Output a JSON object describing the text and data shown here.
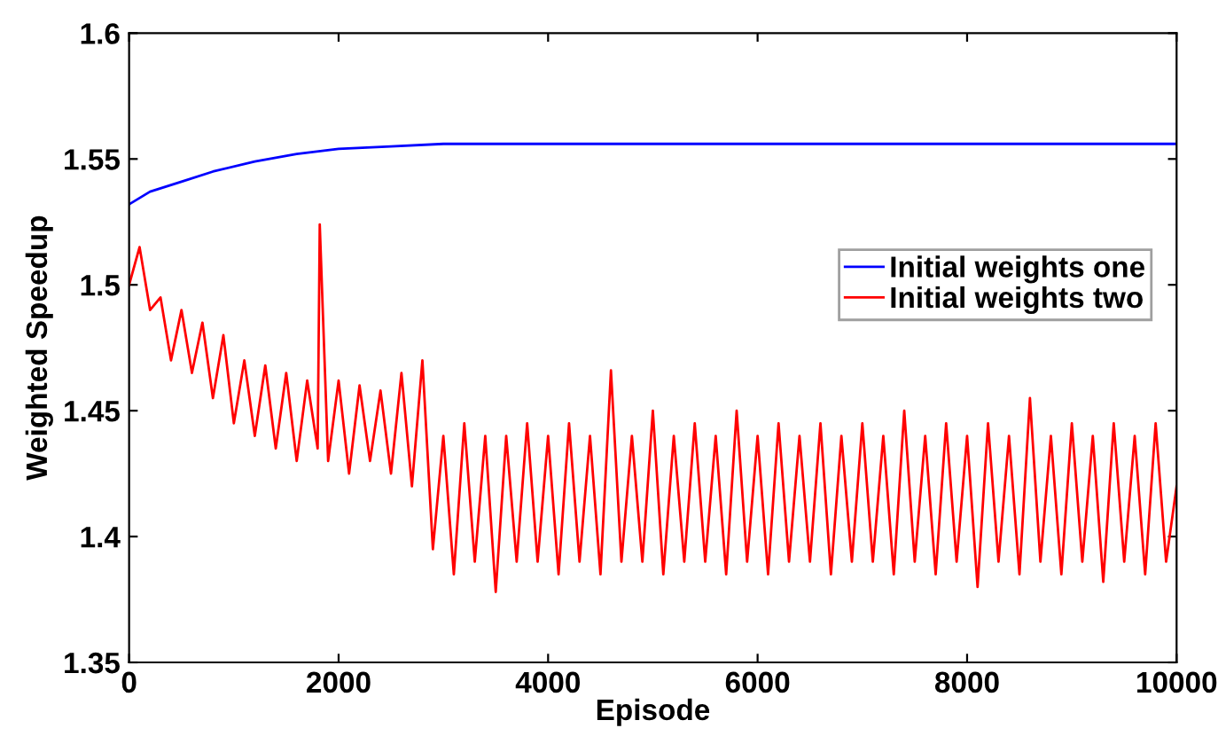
{
  "chart_data": {
    "type": "line",
    "xlabel": "Episode",
    "ylabel": "Weighted Speedup",
    "xlim": [
      0,
      10000
    ],
    "ylim": [
      1.35,
      1.6
    ],
    "xticks": [
      0,
      2000,
      4000,
      6000,
      8000,
      10000
    ],
    "yticks": [
      1.35,
      1.4,
      1.45,
      1.5,
      1.55,
      1.6
    ],
    "grid": false,
    "legend": "right",
    "marker": "none",
    "line_style": "solid",
    "series": [
      {
        "name": "Initial weights one",
        "color": "#0000ff",
        "x": [
          0,
          200,
          500,
          800,
          1200,
          1600,
          2000,
          2500,
          3000,
          4000,
          6000,
          8000,
          10000
        ],
        "values": [
          1.532,
          1.537,
          1.541,
          1.545,
          1.549,
          1.552,
          1.554,
          1.555,
          1.556,
          1.556,
          1.556,
          1.556,
          1.556
        ]
      },
      {
        "name": "Initial weights two",
        "color": "#ff0000",
        "x": [
          0,
          100,
          200,
          300,
          400,
          500,
          600,
          700,
          800,
          900,
          1000,
          1100,
          1200,
          1300,
          1400,
          1500,
          1600,
          1700,
          1800,
          1820,
          1900,
          2000,
          2100,
          2200,
          2300,
          2400,
          2500,
          2600,
          2700,
          2800,
          2900,
          3000,
          3100,
          3200,
          3300,
          3400,
          3500,
          3600,
          3700,
          3800,
          3900,
          4000,
          4100,
          4200,
          4300,
          4400,
          4500,
          4600,
          4700,
          4800,
          4900,
          5000,
          5100,
          5200,
          5300,
          5400,
          5500,
          5600,
          5700,
          5800,
          5900,
          6000,
          6100,
          6200,
          6300,
          6400,
          6500,
          6600,
          6700,
          6800,
          6900,
          7000,
          7100,
          7200,
          7300,
          7400,
          7500,
          7600,
          7700,
          7800,
          7900,
          8000,
          8100,
          8200,
          8300,
          8400,
          8500,
          8600,
          8700,
          8800,
          8900,
          9000,
          9100,
          9200,
          9300,
          9400,
          9500,
          9600,
          9700,
          9800,
          9900,
          10000
        ],
        "values": [
          1.5,
          1.515,
          1.49,
          1.495,
          1.47,
          1.49,
          1.465,
          1.485,
          1.455,
          1.48,
          1.445,
          1.47,
          1.44,
          1.468,
          1.435,
          1.465,
          1.43,
          1.462,
          1.435,
          1.524,
          1.43,
          1.462,
          1.425,
          1.46,
          1.43,
          1.458,
          1.425,
          1.465,
          1.42,
          1.47,
          1.395,
          1.44,
          1.385,
          1.445,
          1.39,
          1.44,
          1.378,
          1.44,
          1.39,
          1.445,
          1.39,
          1.44,
          1.385,
          1.445,
          1.39,
          1.44,
          1.385,
          1.466,
          1.39,
          1.44,
          1.39,
          1.45,
          1.385,
          1.44,
          1.39,
          1.445,
          1.39,
          1.44,
          1.385,
          1.45,
          1.39,
          1.44,
          1.385,
          1.445,
          1.39,
          1.44,
          1.39,
          1.445,
          1.385,
          1.44,
          1.39,
          1.445,
          1.39,
          1.44,
          1.385,
          1.45,
          1.39,
          1.44,
          1.385,
          1.445,
          1.39,
          1.44,
          1.38,
          1.445,
          1.39,
          1.44,
          1.385,
          1.455,
          1.39,
          1.44,
          1.385,
          1.445,
          1.39,
          1.44,
          1.382,
          1.445,
          1.39,
          1.44,
          1.385,
          1.445,
          1.39,
          1.42
        ]
      }
    ]
  }
}
